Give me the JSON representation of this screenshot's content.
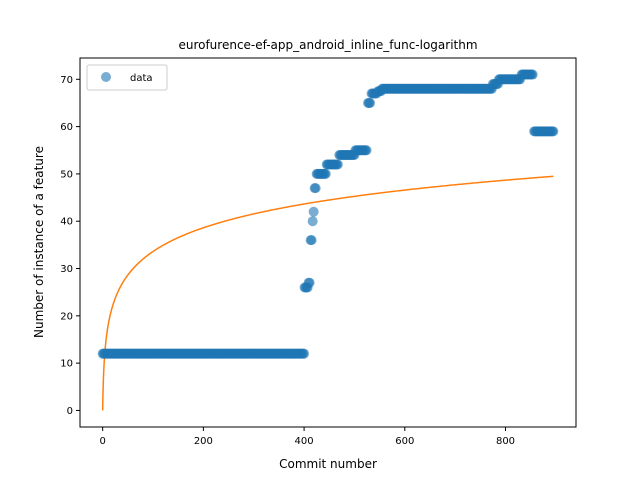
{
  "chart_data": {
    "type": "scatter",
    "title": "eurofurence-ef-app_android_inline_func-logarithm",
    "xlabel": "Commit number",
    "ylabel": "Number of instance of a feature",
    "xlim": [
      -45,
      940
    ],
    "ylim": [
      -3.5,
      74.5
    ],
    "xticks": [
      0,
      200,
      400,
      600,
      800
    ],
    "yticks": [
      0,
      10,
      20,
      30,
      40,
      50,
      60,
      70
    ],
    "legend": {
      "placement": "top-left",
      "entries": [
        "data"
      ]
    },
    "colors": {
      "data": "#1f77b4",
      "fit": "#ff7f0e"
    },
    "series": [
      {
        "name": "data",
        "kind": "scatter",
        "segments": [
          {
            "x_start": 0,
            "x_end": 400,
            "step": 2,
            "y": 12
          },
          {
            "points": [
              [
                401,
                26
              ],
              [
                403,
                26
              ],
              [
                405,
                26
              ],
              [
                407,
                26
              ],
              [
                409,
                27
              ],
              [
                411,
                27
              ],
              [
                413,
                36
              ],
              [
                415,
                36
              ],
              [
                417,
                40
              ],
              [
                419,
                42
              ],
              [
                421,
                47
              ],
              [
                423,
                47
              ]
            ]
          },
          {
            "x_start": 425,
            "x_end": 443,
            "step": 2,
            "y": 50
          },
          {
            "x_start": 445,
            "x_end": 468,
            "step": 2,
            "y": 52
          },
          {
            "x_start": 470,
            "x_end": 500,
            "step": 2,
            "y": 54
          },
          {
            "x_start": 502,
            "x_end": 525,
            "step": 2,
            "y": 55
          },
          {
            "x_start": 527,
            "x_end": 532,
            "step": 2,
            "y": 65
          },
          {
            "x_start": 534,
            "x_end": 545,
            "step": 2,
            "y": 67
          },
          {
            "x_start": 547,
            "x_end": 553,
            "step": 2,
            "y": 67.5
          },
          {
            "x_start": 555,
            "x_end": 773,
            "step": 2,
            "y": 68
          },
          {
            "x_start": 775,
            "x_end": 785,
            "step": 2,
            "y": 69
          },
          {
            "x_start": 787,
            "x_end": 830,
            "step": 2,
            "y": 70
          },
          {
            "x_start": 832,
            "x_end": 855,
            "step": 2,
            "y": 71
          },
          {
            "x_start": 857,
            "x_end": 895,
            "step": 2,
            "y": 59
          }
        ]
      },
      {
        "name": "",
        "kind": "line",
        "formula": "a*ln(x+1)",
        "a": 7.28,
        "x_range": [
          0,
          895
        ]
      }
    ]
  }
}
